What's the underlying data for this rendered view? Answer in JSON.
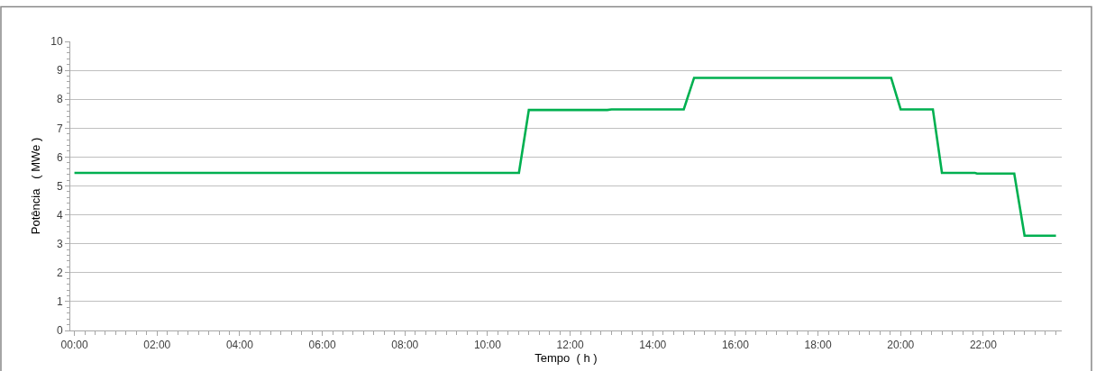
{
  "chart_data": {
    "type": "line",
    "xlabel": "Tempo  ( h )",
    "ylabel": "Potência   ( MWe )",
    "x": [
      0,
      10.76,
      11.0,
      12.9,
      13.0,
      14.75,
      15.0,
      19.77,
      20.0,
      20.78,
      21.0,
      21.8,
      21.85,
      22.75,
      23.0,
      23.76
    ],
    "series": [
      {
        "color": "#00b050",
        "values": [
          5.45,
          5.45,
          7.63,
          7.63,
          7.65,
          7.65,
          8.74,
          8.74,
          7.65,
          7.65,
          5.45,
          5.45,
          5.43,
          5.43,
          3.28,
          3.28
        ]
      }
    ],
    "xlim": [
      -0.1,
      23.9
    ],
    "xticks": [
      {
        "value": 0,
        "label": "00:00"
      },
      {
        "value": 2,
        "label": "02:00"
      },
      {
        "value": 4,
        "label": "04:00"
      },
      {
        "value": 6,
        "label": "06:00"
      },
      {
        "value": 8,
        "label": "08:00"
      },
      {
        "value": 10,
        "label": "10:00"
      },
      {
        "value": 12,
        "label": "12:00"
      },
      {
        "value": 14,
        "label": "14:00"
      },
      {
        "value": 16,
        "label": "16:00"
      },
      {
        "value": 18,
        "label": "18:00"
      },
      {
        "value": 20,
        "label": "20:00"
      },
      {
        "value": 22,
        "label": "22:00"
      }
    ],
    "ylim": [
      0,
      10
    ],
    "yticks": [
      0,
      1,
      2,
      3,
      4,
      5,
      6,
      7,
      8,
      9,
      10
    ],
    "grid": "y",
    "marker": "none",
    "line_style": "solid"
  }
}
